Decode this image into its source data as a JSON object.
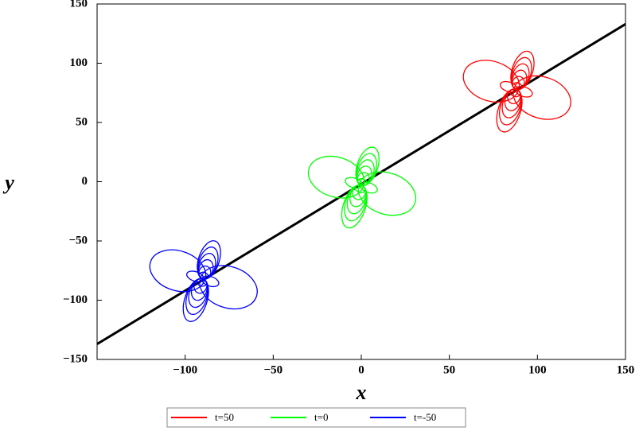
{
  "chart_data": {
    "type": "contour",
    "xlabel": "x",
    "ylabel": "y",
    "xlim": [
      -150,
      150
    ],
    "ylim": [
      -150,
      150
    ],
    "xticks": [
      {
        "value": -100,
        "label": "−100"
      },
      {
        "value": -50,
        "label": "−50"
      },
      0,
      50,
      100,
      150
    ],
    "yticks": [
      {
        "value": -150,
        "label": "−150"
      },
      {
        "value": -100,
        "label": "−100"
      },
      {
        "value": -50,
        "label": "−50"
      },
      0,
      50,
      100,
      150
    ],
    "line": {
      "x": [
        -150,
        150
      ],
      "y": [
        -137,
        133
      ],
      "color": "#000000"
    },
    "series": [
      {
        "name": "t=50",
        "color": "#ff0000",
        "x": [
          88
        ],
        "y": [
          78
        ]
      },
      {
        "name": "t=0",
        "color": "#00ff00",
        "x": [
          0
        ],
        "y": [
          -3
        ]
      },
      {
        "name": "t=-50",
        "color": "#0000ff",
        "x": [
          -90
        ],
        "y": [
          -82
        ]
      }
    ],
    "legend": "bottom"
  }
}
